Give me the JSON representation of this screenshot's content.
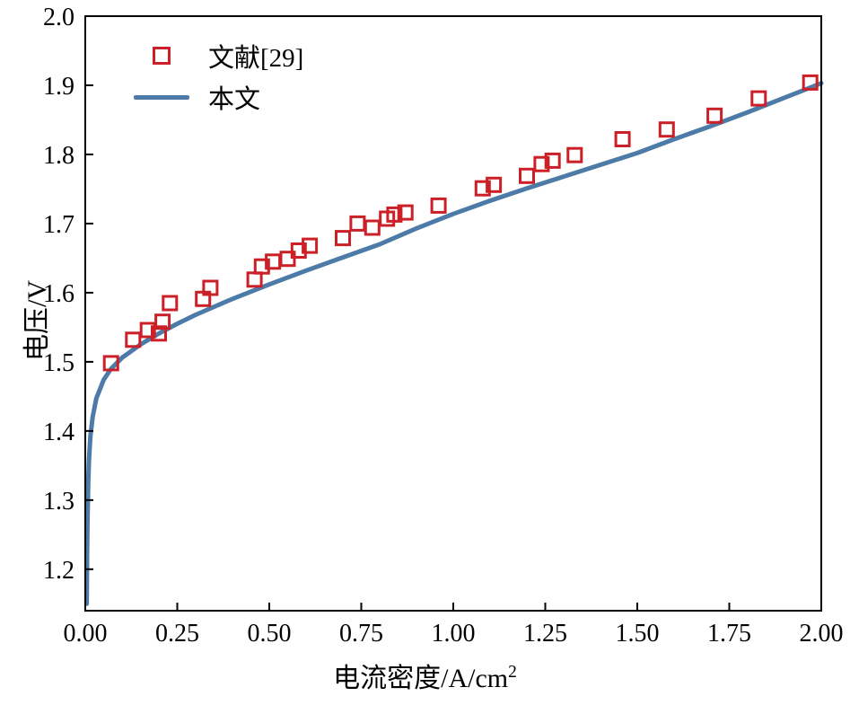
{
  "figure": {
    "background": "#ffffff",
    "axes_color": "#000000"
  },
  "chart_data": {
    "type": "line",
    "title": "",
    "xlabel": "电流密度/A/cm²",
    "xlabel_base": "电流密度/A/cm",
    "xlabel_sup": "2",
    "ylabel": "电压/V",
    "xlim": [
      0,
      2.0
    ],
    "ylim": [
      1.14,
      2.0
    ],
    "grid": false,
    "legend_position": "upper-left",
    "xticks": {
      "values": [
        0,
        0.25,
        0.5,
        0.75,
        1.0,
        1.25,
        1.5,
        1.75,
        2.0
      ],
      "labels": [
        "0.00",
        "0.25",
        "0.50",
        "0.75",
        "1.00",
        "1.25",
        "1.50",
        "1.75",
        "2.00"
      ]
    },
    "yticks": {
      "values": [
        1.2,
        1.3,
        1.4,
        1.5,
        1.6,
        1.7,
        1.8,
        1.9,
        2.0
      ],
      "labels": [
        "1.2",
        "1.3",
        "1.4",
        "1.5",
        "1.6",
        "1.7",
        "1.8",
        "1.9",
        "2.0"
      ]
    },
    "series": [
      {
        "name": "文献[29]",
        "type": "scatter",
        "marker": "open-square",
        "color": "#cb2027",
        "marker_size": 15,
        "points": [
          [
            0.07,
            1.498
          ],
          [
            0.13,
            1.532
          ],
          [
            0.17,
            1.546
          ],
          [
            0.2,
            1.541
          ],
          [
            0.21,
            1.558
          ],
          [
            0.23,
            1.585
          ],
          [
            0.32,
            1.591
          ],
          [
            0.34,
            1.607
          ],
          [
            0.46,
            1.619
          ],
          [
            0.48,
            1.638
          ],
          [
            0.51,
            1.645
          ],
          [
            0.55,
            1.649
          ],
          [
            0.58,
            1.661
          ],
          [
            0.61,
            1.668
          ],
          [
            0.7,
            1.679
          ],
          [
            0.74,
            1.7
          ],
          [
            0.78,
            1.694
          ],
          [
            0.82,
            1.707
          ],
          [
            0.84,
            1.713
          ],
          [
            0.87,
            1.716
          ],
          [
            0.96,
            1.726
          ],
          [
            1.08,
            1.751
          ],
          [
            1.11,
            1.756
          ],
          [
            1.2,
            1.769
          ],
          [
            1.24,
            1.786
          ],
          [
            1.27,
            1.791
          ],
          [
            1.33,
            1.799
          ],
          [
            1.46,
            1.822
          ],
          [
            1.58,
            1.836
          ],
          [
            1.71,
            1.856
          ],
          [
            1.83,
            1.881
          ],
          [
            1.97,
            1.904
          ]
        ]
      },
      {
        "name": "本文",
        "type": "line",
        "color": "#4d7ba7",
        "line_width": 5,
        "points": [
          [
            0.004,
            1.15
          ],
          [
            0.005,
            1.22
          ],
          [
            0.006,
            1.27
          ],
          [
            0.008,
            1.325
          ],
          [
            0.01,
            1.357
          ],
          [
            0.014,
            1.392
          ],
          [
            0.02,
            1.42
          ],
          [
            0.03,
            1.447
          ],
          [
            0.05,
            1.474
          ],
          [
            0.07,
            1.49
          ],
          [
            0.1,
            1.506
          ],
          [
            0.15,
            1.525
          ],
          [
            0.2,
            1.541
          ],
          [
            0.25,
            1.555
          ],
          [
            0.3,
            1.568
          ],
          [
            0.4,
            1.591
          ],
          [
            0.5,
            1.612
          ],
          [
            0.6,
            1.632
          ],
          [
            0.7,
            1.651
          ],
          [
            0.8,
            1.67
          ],
          [
            0.9,
            1.693
          ],
          [
            1.0,
            1.714
          ],
          [
            1.1,
            1.733
          ],
          [
            1.2,
            1.751
          ],
          [
            1.3,
            1.768
          ],
          [
            1.4,
            1.785
          ],
          [
            1.5,
            1.802
          ],
          [
            1.6,
            1.822
          ],
          [
            1.7,
            1.841
          ],
          [
            1.8,
            1.861
          ],
          [
            1.9,
            1.882
          ],
          [
            2.0,
            1.903
          ]
        ]
      }
    ]
  }
}
